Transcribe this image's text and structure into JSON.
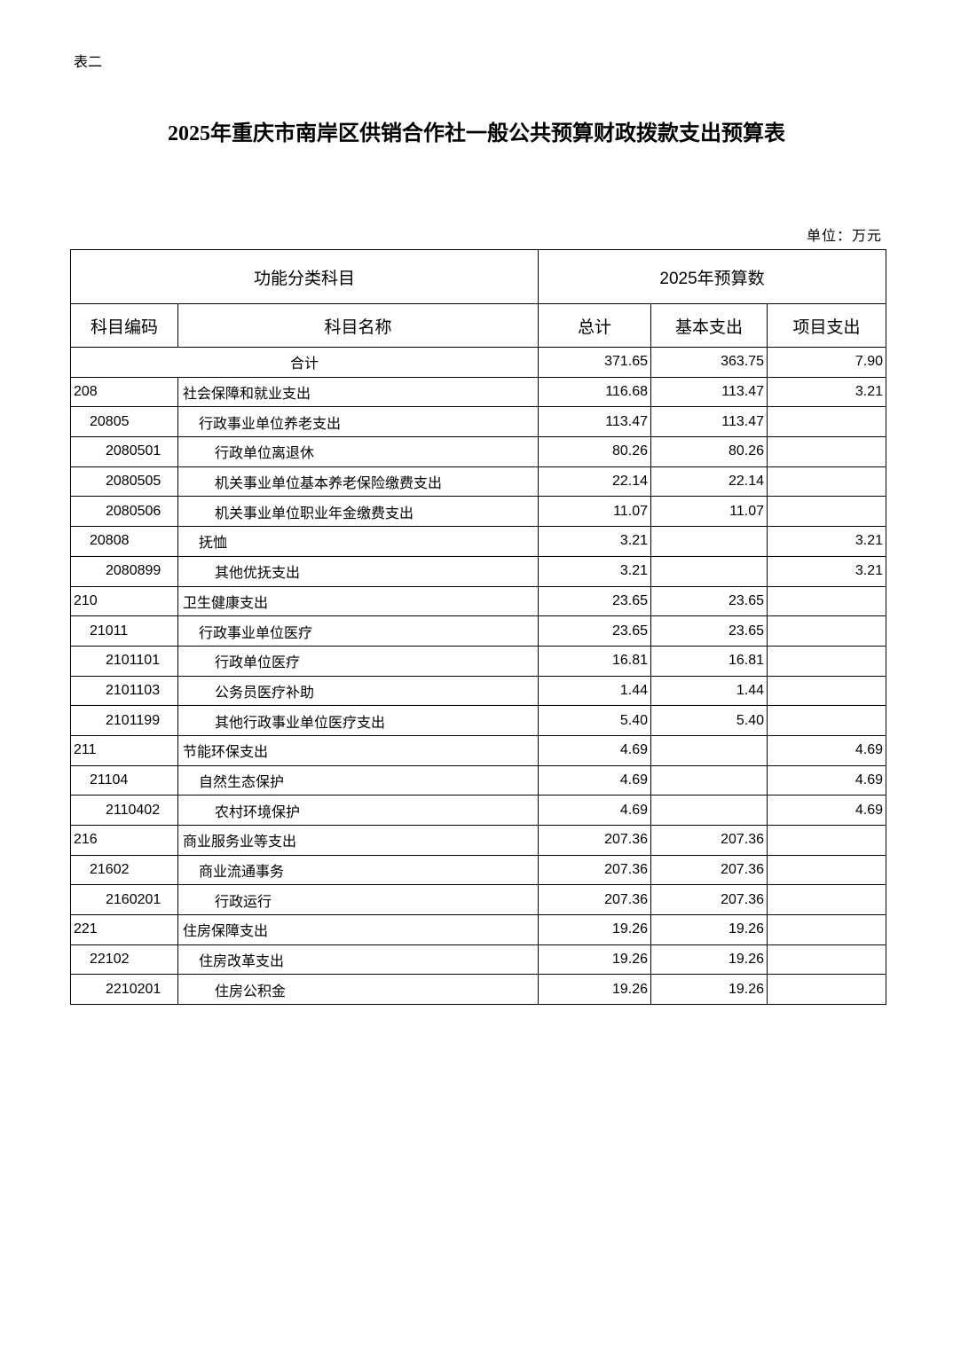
{
  "doc_label": "表二",
  "title": "2025年重庆市南岸区供销合作社一般公共预算财政拨款支出预算表",
  "unit": "单位：万元",
  "table": {
    "header_group_left": "功能分类科目",
    "header_group_right": "2025年预算数",
    "columns": [
      "科目编码",
      "科目名称",
      "总计",
      "基本支出",
      "项目支出"
    ],
    "total": {
      "label": "合计",
      "total": "371.65",
      "basic": "363.75",
      "project": "7.90"
    },
    "rows": [
      {
        "level": 0,
        "code": "208",
        "name": "社会保障和就业支出",
        "total": "116.68",
        "basic": "113.47",
        "project": "3.21"
      },
      {
        "level": 1,
        "code": "20805",
        "name": "行政事业单位养老支出",
        "total": "113.47",
        "basic": "113.47",
        "project": ""
      },
      {
        "level": 2,
        "code": "2080501",
        "name": "行政单位离退休",
        "total": "80.26",
        "basic": "80.26",
        "project": ""
      },
      {
        "level": 2,
        "code": "2080505",
        "name": "机关事业单位基本养老保险缴费支出",
        "total": "22.14",
        "basic": "22.14",
        "project": ""
      },
      {
        "level": 2,
        "code": "2080506",
        "name": "机关事业单位职业年金缴费支出",
        "total": "11.07",
        "basic": "11.07",
        "project": ""
      },
      {
        "level": 1,
        "code": "20808",
        "name": "抚恤",
        "total": "3.21",
        "basic": "",
        "project": "3.21"
      },
      {
        "level": 2,
        "code": "2080899",
        "name": "其他优抚支出",
        "total": "3.21",
        "basic": "",
        "project": "3.21"
      },
      {
        "level": 0,
        "code": "210",
        "name": "卫生健康支出",
        "total": "23.65",
        "basic": "23.65",
        "project": ""
      },
      {
        "level": 1,
        "code": "21011",
        "name": "行政事业单位医疗",
        "total": "23.65",
        "basic": "23.65",
        "project": ""
      },
      {
        "level": 2,
        "code": "2101101",
        "name": "行政单位医疗",
        "total": "16.81",
        "basic": "16.81",
        "project": ""
      },
      {
        "level": 2,
        "code": "2101103",
        "name": "公务员医疗补助",
        "total": "1.44",
        "basic": "1.44",
        "project": ""
      },
      {
        "level": 2,
        "code": "2101199",
        "name": "其他行政事业单位医疗支出",
        "total": "5.40",
        "basic": "5.40",
        "project": ""
      },
      {
        "level": 0,
        "code": "211",
        "name": "节能环保支出",
        "total": "4.69",
        "basic": "",
        "project": "4.69"
      },
      {
        "level": 1,
        "code": "21104",
        "name": "自然生态保护",
        "total": "4.69",
        "basic": "",
        "project": "4.69"
      },
      {
        "level": 2,
        "code": "2110402",
        "name": "农村环境保护",
        "total": "4.69",
        "basic": "",
        "project": "4.69"
      },
      {
        "level": 0,
        "code": "216",
        "name": "商业服务业等支出",
        "total": "207.36",
        "basic": "207.36",
        "project": ""
      },
      {
        "level": 1,
        "code": "21602",
        "name": "商业流通事务",
        "total": "207.36",
        "basic": "207.36",
        "project": ""
      },
      {
        "level": 2,
        "code": "2160201",
        "name": "行政运行",
        "total": "207.36",
        "basic": "207.36",
        "project": ""
      },
      {
        "level": 0,
        "code": "221",
        "name": "住房保障支出",
        "total": "19.26",
        "basic": "19.26",
        "project": ""
      },
      {
        "level": 1,
        "code": "22102",
        "name": "住房改革支出",
        "total": "19.26",
        "basic": "19.26",
        "project": ""
      },
      {
        "level": 2,
        "code": "2210201",
        "name": "住房公积金",
        "total": "19.26",
        "basic": "19.26",
        "project": ""
      }
    ]
  }
}
